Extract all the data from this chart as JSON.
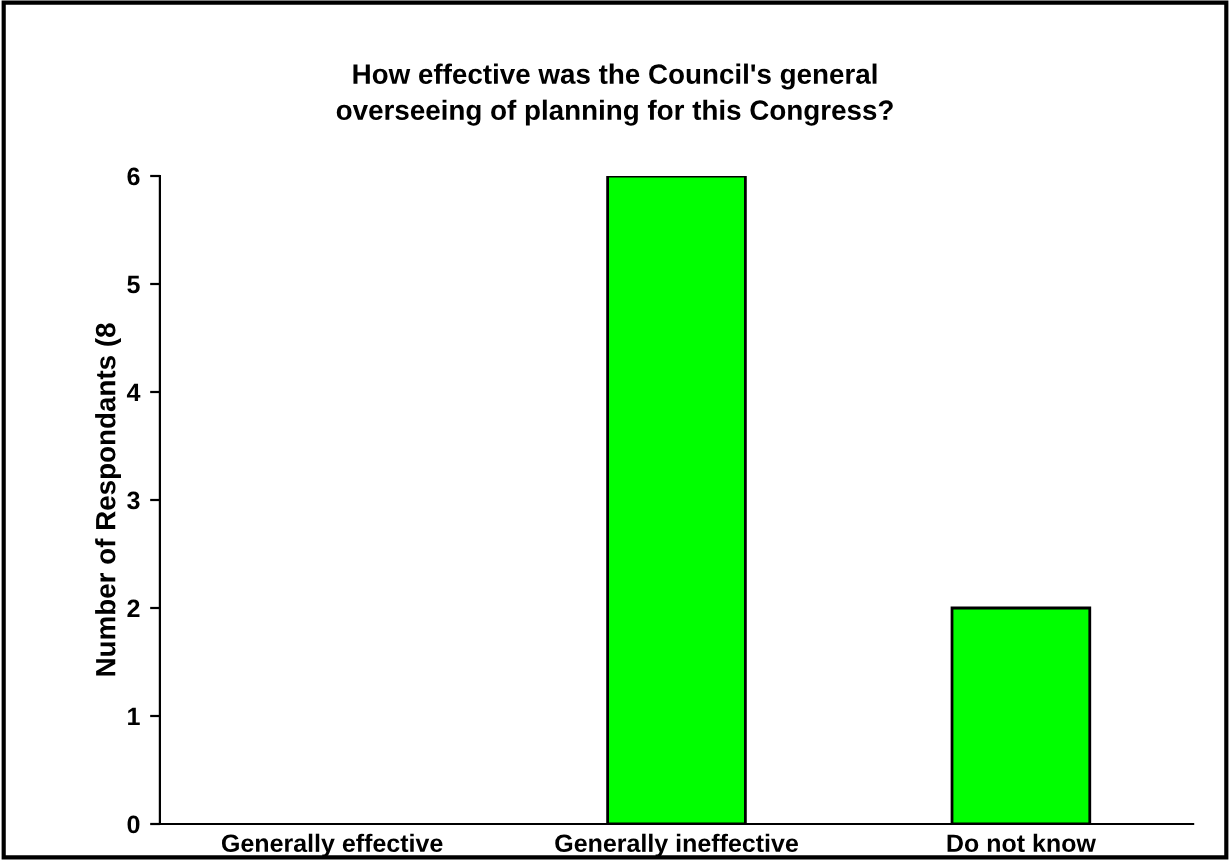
{
  "chart_data": {
    "type": "bar",
    "title": "How effective was the Council's general\noverseeing of planning for this Congress?",
    "ylabel": "Number of Respondants (8",
    "categories": [
      "Generally effective",
      "Generally ineffective",
      "Do not know"
    ],
    "values": [
      0,
      6,
      2
    ],
    "color": "#00ff00",
    "ylim": [
      0,
      6
    ],
    "yticks": [
      0,
      1,
      2,
      3,
      4,
      5,
      6
    ],
    "grid": false,
    "legend": false
  }
}
